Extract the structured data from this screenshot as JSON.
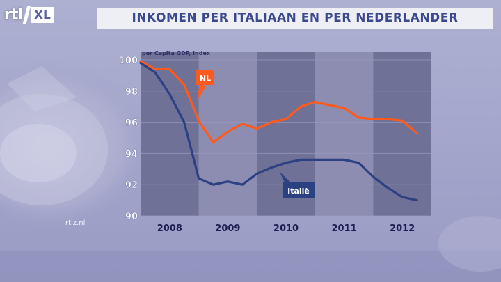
{
  "logo": {
    "brand": "rtl",
    "suffix": "XL"
  },
  "title": "INKOMEN PER ITALIAAN EN PER NEDERLANDER",
  "watermark": "rtlz.nl",
  "colors": {
    "background": "#9a9bc4",
    "band_dark": "#6f7196",
    "band_light": "#8c8db0",
    "nl_line": "#ff5a1e",
    "it_line": "#2b4182",
    "title_text": "#3b4a8e"
  },
  "chart_data": {
    "type": "line",
    "title": "INKOMEN PER ITALIAAN EN PER NEDERLANDER",
    "subtitle": "per Capita GDP, Index",
    "xlabel": "",
    "ylabel": "",
    "ylim": [
      90,
      100
    ],
    "xlim": [
      2007.75,
      2012.75
    ],
    "yticks": [
      90,
      92,
      94,
      96,
      98,
      100
    ],
    "yticklabels": [
      "90",
      "92",
      "94",
      "96",
      "98",
      "100"
    ],
    "xticks": [
      2008.25,
      2009.25,
      2010.25,
      2011.25,
      2012.25
    ],
    "xticklabels": [
      "2008",
      "2009",
      "2010",
      "2011",
      "2012"
    ],
    "bands": [
      [
        2007.75,
        2008.75
      ],
      [
        2009.75,
        2010.75
      ],
      [
        2011.75,
        2012.75
      ]
    ],
    "grid": true,
    "series": [
      {
        "name": "NL",
        "color": "#ff5a1e",
        "x": [
          2007.75,
          2008.0,
          2008.25,
          2008.5,
          2008.75,
          2009.0,
          2009.25,
          2009.5,
          2009.75,
          2010.0,
          2010.25,
          2010.5,
          2010.75,
          2011.0,
          2011.25,
          2011.5,
          2011.75,
          2012.0,
          2012.25,
          2012.5
        ],
        "values": [
          99.9,
          99.4,
          99.4,
          98.4,
          96.1,
          94.7,
          95.4,
          95.9,
          95.6,
          96.0,
          96.2,
          97.0,
          97.3,
          97.1,
          96.9,
          96.3,
          96.2,
          96.2,
          96.1,
          95.3
        ]
      },
      {
        "name": "Italië",
        "color": "#2b4182",
        "x": [
          2007.75,
          2008.0,
          2008.25,
          2008.5,
          2008.75,
          2009.0,
          2009.25,
          2009.5,
          2009.75,
          2010.0,
          2010.25,
          2010.5,
          2010.75,
          2011.0,
          2011.25,
          2011.5,
          2011.75,
          2012.0,
          2012.25,
          2012.5
        ],
        "values": [
          99.8,
          99.2,
          97.8,
          96.0,
          92.4,
          92.0,
          92.2,
          92.0,
          92.7,
          93.1,
          93.4,
          93.6,
          93.6,
          93.6,
          93.6,
          93.4,
          92.5,
          91.8,
          91.2,
          91.0
        ]
      }
    ],
    "annotations": [
      {
        "text": "NL",
        "series": "NL"
      },
      {
        "text": "Italië",
        "series": "Italië"
      }
    ]
  }
}
